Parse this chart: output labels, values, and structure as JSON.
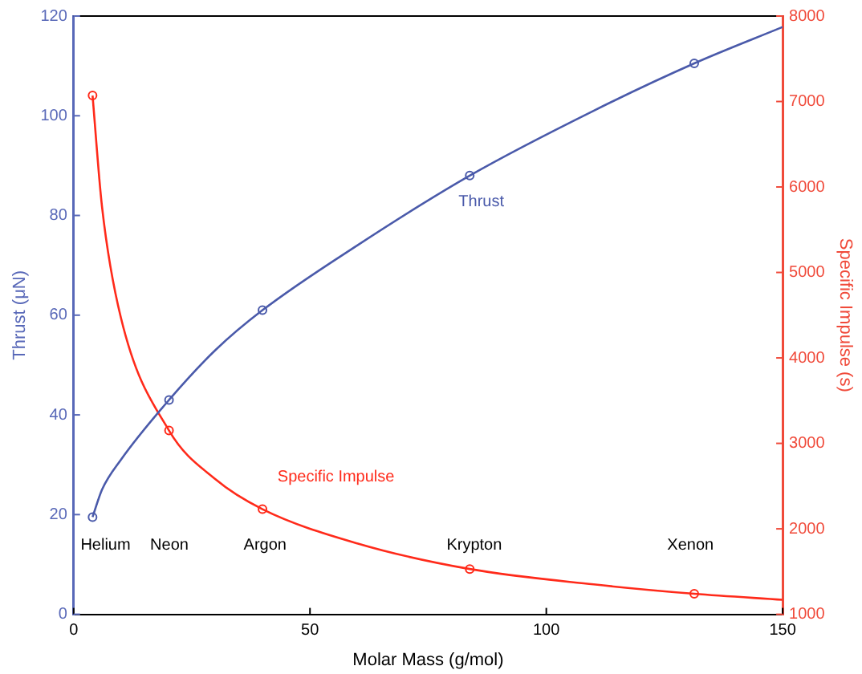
{
  "chart_data": {
    "type": "line",
    "xlabel": "Molar Mass (g/mol)",
    "ylabel": "Thrust (μN)",
    "y2label": "Specific Impulse (s)",
    "xlim": [
      0,
      150
    ],
    "xticks": [
      0,
      50,
      100,
      150
    ],
    "ylim": [
      0,
      120
    ],
    "yticks": [
      0,
      20,
      40,
      60,
      80,
      100,
      120
    ],
    "y2lim": [
      1000,
      8000
    ],
    "y2ticks": [
      1000,
      2000,
      3000,
      4000,
      5000,
      6000,
      7000,
      8000
    ],
    "grid": false,
    "legend": false,
    "series": [
      {
        "type": "line",
        "color": "#4a5aaa",
        "marker": "none",
        "x": [
          4,
          6,
          10,
          20.18,
          30,
          39.95,
          60,
          83.8,
          110,
          131.3,
          150
        ],
        "values": [
          19.5,
          25,
          31,
          43,
          53,
          61,
          74,
          88,
          101,
          110.5,
          117.8
        ]
      },
      {
        "type": "scatter",
        "color": "#4a5aaa",
        "marker": "circle",
        "x": [
          4,
          20.18,
          39.95,
          83.8,
          131.3
        ],
        "values": [
          19.5,
          43,
          61,
          88,
          110.5
        ]
      },
      {
        "type": "line",
        "color": "#ff2a1a",
        "marker": "none",
        "axis": "y2",
        "x": [
          4,
          6,
          10,
          20.18,
          30,
          39.95,
          60,
          83.8,
          110,
          131.3,
          150
        ],
        "values": [
          7070,
          5770,
          4470,
          3150,
          2580,
          2230,
          1830,
          1530,
          1350,
          1240,
          1170
        ]
      },
      {
        "type": "scatter",
        "color": "#ff2a1a",
        "marker": "circle",
        "axis": "y2",
        "x": [
          4,
          20.18,
          39.95,
          83.8,
          131.3
        ],
        "values": [
          7070,
          3150,
          2230,
          1530,
          1240
        ]
      }
    ],
    "annotations": [
      "Thrust",
      "Specific Impulse",
      "Helium",
      "Neon",
      "Argon",
      "Krypton",
      "Xenon"
    ]
  }
}
